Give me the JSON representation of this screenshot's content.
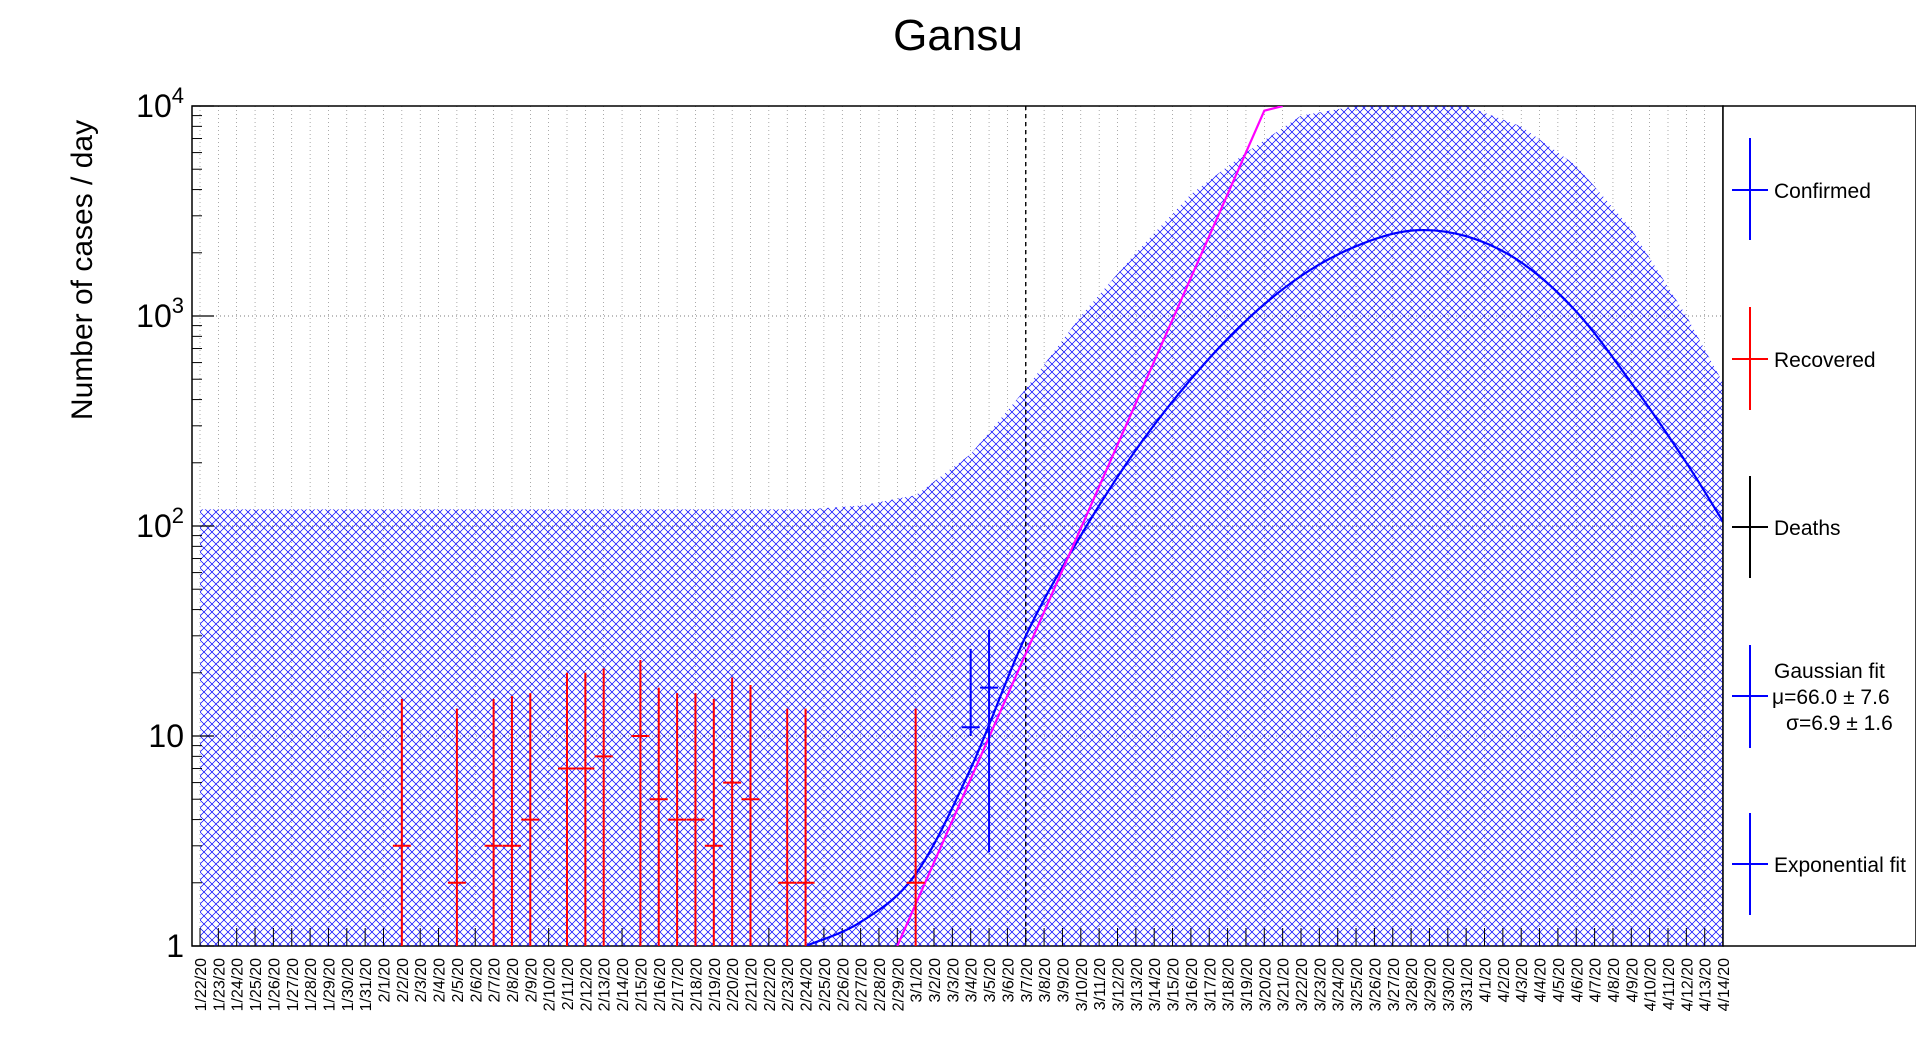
{
  "chart_data": {
    "type": "scatter",
    "title": "Gansu",
    "ylabel": "Number of cases / day",
    "xlabel": "",
    "yscale": "log",
    "ylim": [
      1,
      10000
    ],
    "grid": true,
    "legend_position": "right",
    "y_tick_labels": [
      {
        "value": 1,
        "base": "1",
        "exp": ""
      },
      {
        "value": 10,
        "base": "10",
        "exp": ""
      },
      {
        "value": 100,
        "base": "10",
        "exp": "2"
      },
      {
        "value": 1000,
        "base": "10",
        "exp": "3"
      },
      {
        "value": 10000,
        "base": "10",
        "exp": "4"
      }
    ],
    "x_dates": [
      "1/22/20",
      "1/23/20",
      "1/24/20",
      "1/25/20",
      "1/26/20",
      "1/27/20",
      "1/28/20",
      "1/29/20",
      "1/30/20",
      "1/31/20",
      "2/1/20",
      "2/2/20",
      "2/3/20",
      "2/4/20",
      "2/5/20",
      "2/6/20",
      "2/7/20",
      "2/8/20",
      "2/9/20",
      "2/10/20",
      "2/11/20",
      "2/12/20",
      "2/13/20",
      "2/14/20",
      "2/15/20",
      "2/16/20",
      "2/17/20",
      "2/18/20",
      "2/19/20",
      "2/20/20",
      "2/21/20",
      "2/22/20",
      "2/23/20",
      "2/24/20",
      "2/25/20",
      "2/26/20",
      "2/27/20",
      "2/28/20",
      "2/29/20",
      "3/1/20",
      "3/2/20",
      "3/3/20",
      "3/4/20",
      "3/5/20",
      "3/6/20",
      "3/7/20",
      "3/8/20",
      "3/9/20",
      "3/10/20",
      "3/11/20",
      "3/12/20",
      "3/13/20",
      "3/14/20",
      "3/15/20",
      "3/16/20",
      "3/17/20",
      "3/18/20",
      "3/19/20",
      "3/20/20",
      "3/21/20",
      "3/22/20",
      "3/23/20",
      "3/24/20",
      "3/25/20",
      "3/26/20",
      "3/27/20",
      "3/28/20",
      "3/29/20",
      "3/30/20",
      "3/31/20",
      "4/1/20",
      "4/2/20",
      "4/3/20",
      "4/4/20",
      "4/5/20",
      "4/6/20",
      "4/7/20",
      "4/8/20",
      "4/9/20",
      "4/10/20",
      "4/11/20",
      "4/12/20",
      "4/13/20",
      "4/14/20"
    ],
    "x_tick_labels": [
      "1/22/20",
      "1/23/20",
      "1/24/20",
      "1/25/20",
      "1/26/20",
      "1/27/20",
      "1/28/20",
      "1/29/20",
      "1/30/20",
      "1/31/20",
      "2/1/20",
      "2/2/20",
      "2/3/20",
      "2/4/20",
      "2/5/20",
      "2/6/20",
      "2/7/20",
      "2/8/20",
      "2/9/20",
      "2/10/20",
      "2/11/20",
      "2/12/20",
      "2/13/20",
      "2/14/20",
      "2/15/20",
      "2/16/20",
      "2/17/20",
      "2/18/20",
      "2/19/20",
      "2/20/20",
      "2/21/20",
      "2/22/20",
      "2/23/20",
      "2/24/20",
      "2/25/20",
      "2/26/20",
      "2/27/20",
      "2/28/20",
      "2/29/20",
      "3/1/20",
      "3/2/20",
      "3/3/20",
      "3/4/20",
      "3/5/20",
      "3/6/20",
      "3/7/20",
      "3/8/20",
      "3/9/20",
      "3/10/20",
      "3/11/20",
      "3/12/20",
      "3/13/20",
      "3/14/20",
      "3/15/20",
      "3/16/20",
      "3/17/20",
      "3/18/20",
      "3/19/20",
      "3/20/20",
      "3/21/20",
      "3/22/20",
      "3/23/20",
      "3/24/20",
      "3/25/20",
      "3/26/20",
      "3/27/20",
      "3/28/20",
      "3/29/20",
      "3/30/20",
      "3/31/20",
      "4/1/20",
      "4/2/20",
      "4/3/20",
      "4/4/20",
      "4/5/20",
      "4/6/20",
      "4/7/20",
      "4/8/20",
      "4/9/20",
      "4/10/20",
      "4/11/20",
      "4/12/20",
      "4/13/20",
      "4/14/20"
    ],
    "reference_line_date": "3/7/20",
    "series": [
      {
        "name": "Confirmed",
        "color": "#0000ff",
        "kind": "points",
        "points": [
          {
            "date": "3/4/20",
            "y": 11,
            "err_low": 10,
            "err_high": 26
          },
          {
            "date": "3/5/20",
            "y": 17,
            "err_low": 2.8,
            "err_high": 32
          }
        ]
      },
      {
        "name": "Recovered",
        "color": "#ff0000",
        "kind": "points",
        "points": [
          {
            "date": "2/2/20",
            "y": 3,
            "err_low": 1,
            "err_high": 15
          },
          {
            "date": "2/5/20",
            "y": 2,
            "err_low": 1,
            "err_high": 13.5
          },
          {
            "date": "2/7/20",
            "y": 3,
            "err_low": 1,
            "err_high": 15
          },
          {
            "date": "2/8/20",
            "y": 3,
            "err_low": 1,
            "err_high": 15.5
          },
          {
            "date": "2/9/20",
            "y": 4,
            "err_low": 1,
            "err_high": 16
          },
          {
            "date": "2/11/20",
            "y": 7,
            "err_low": 1,
            "err_high": 20
          },
          {
            "date": "2/12/20",
            "y": 7,
            "err_low": 1,
            "err_high": 20
          },
          {
            "date": "2/13/20",
            "y": 8,
            "err_low": 1,
            "err_high": 21
          },
          {
            "date": "2/15/20",
            "y": 10,
            "err_low": 1,
            "err_high": 23
          },
          {
            "date": "2/16/20",
            "y": 5,
            "err_low": 1,
            "err_high": 17
          },
          {
            "date": "2/17/20",
            "y": 4,
            "err_low": 1,
            "err_high": 16
          },
          {
            "date": "2/18/20",
            "y": 4,
            "err_low": 1,
            "err_high": 16
          },
          {
            "date": "2/19/20",
            "y": 3,
            "err_low": 1,
            "err_high": 15
          },
          {
            "date": "2/20/20",
            "y": 6,
            "err_low": 1,
            "err_high": 19
          },
          {
            "date": "2/21/20",
            "y": 5,
            "err_low": 1,
            "err_high": 17.5
          },
          {
            "date": "2/23/20",
            "y": 2,
            "err_low": 1,
            "err_high": 13.5
          },
          {
            "date": "2/24/20",
            "y": 2,
            "err_low": 1,
            "err_high": 13.5
          },
          {
            "date": "3/1/20",
            "y": 2,
            "err_low": 1,
            "err_high": 13.5
          }
        ]
      },
      {
        "name": "Deaths",
        "color": "#000000",
        "kind": "points",
        "points": []
      },
      {
        "name": "Gaussian fit",
        "color": "#0000ff",
        "kind": "curve",
        "mu_label": "μ=66.0 ± 7.6",
        "sigma_label": "σ=6.9 ± 1.6",
        "curve": [
          {
            "date": "2/24/20",
            "y": 1
          },
          {
            "date": "2/27/20",
            "y": 1.3
          },
          {
            "date": "3/1/20",
            "y": 2.2
          },
          {
            "date": "3/4/20",
            "y": 7
          },
          {
            "date": "3/7/20",
            "y": 30
          },
          {
            "date": "3/10/20",
            "y": 90
          },
          {
            "date": "3/13/20",
            "y": 230
          },
          {
            "date": "3/16/20",
            "y": 500
          },
          {
            "date": "3/19/20",
            "y": 950
          },
          {
            "date": "3/22/20",
            "y": 1550
          },
          {
            "date": "3/25/20",
            "y": 2150
          },
          {
            "date": "3/28/20",
            "y": 2550
          },
          {
            "date": "3/31/20",
            "y": 2400
          },
          {
            "date": "4/3/20",
            "y": 1800
          },
          {
            "date": "4/6/20",
            "y": 1050
          },
          {
            "date": "4/9/20",
            "y": 480
          },
          {
            "date": "4/12/20",
            "y": 200
          },
          {
            "date": "4/14/20",
            "y": 105
          }
        ],
        "band": [
          {
            "date": "1/22/20",
            "low": 1,
            "high": 120
          },
          {
            "date": "2/24/20",
            "low": 1,
            "high": 120
          },
          {
            "date": "2/27/20",
            "low": 1,
            "high": 125
          },
          {
            "date": "3/1/20",
            "low": 1,
            "high": 140
          },
          {
            "date": "3/4/20",
            "low": 1,
            "high": 220
          },
          {
            "date": "3/7/20",
            "low": 1,
            "high": 450
          },
          {
            "date": "3/10/20",
            "low": 1,
            "high": 1000
          },
          {
            "date": "3/13/20",
            "low": 1,
            "high": 2000
          },
          {
            "date": "3/16/20",
            "low": 1,
            "high": 3800
          },
          {
            "date": "3/19/20",
            "low": 1,
            "high": 6000
          },
          {
            "date": "3/22/20",
            "low": 1,
            "high": 9000
          },
          {
            "date": "3/25/20",
            "low": 1,
            "high": 10000
          },
          {
            "date": "3/28/20",
            "low": 1,
            "high": 10000
          },
          {
            "date": "3/31/20",
            "low": 1,
            "high": 10000
          },
          {
            "date": "4/3/20",
            "low": 1,
            "high": 8000
          },
          {
            "date": "4/6/20",
            "low": 1,
            "high": 5200
          },
          {
            "date": "4/9/20",
            "low": 1,
            "high": 2600
          },
          {
            "date": "4/12/20",
            "low": 1,
            "high": 1000
          },
          {
            "date": "4/14/20",
            "low": 1,
            "high": 480
          }
        ]
      },
      {
        "name": "Exponential fit",
        "color": "#ff00ff",
        "legend_color": "#0000ff",
        "kind": "line",
        "line": [
          {
            "date": "2/29/20",
            "y": 1
          },
          {
            "date": "3/20/20",
            "y": 9500
          },
          {
            "date": "3/21/20",
            "y": 10000
          }
        ]
      }
    ]
  }
}
